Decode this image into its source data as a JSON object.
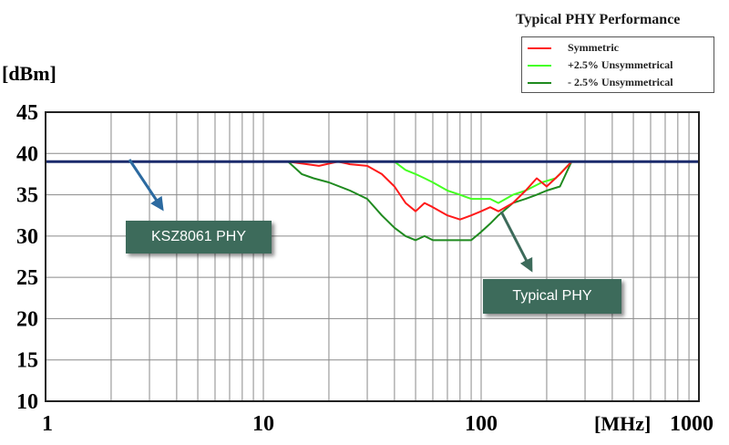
{
  "legend": {
    "title": "Typical PHY Performance",
    "items": [
      {
        "label": "Symmetric",
        "color": "#ff1a1a"
      },
      {
        "label": "+2.5% Unsymmetrical",
        "color": "#44ff22"
      },
      {
        "label": "- 2.5% Unsymmetrical",
        "color": "#1f8a1f"
      }
    ]
  },
  "callouts": {
    "ksz": "KSZ8061 PHY",
    "typical": "Typical PHY"
  },
  "chart_data": {
    "type": "line",
    "title": "Typical PHY Performance",
    "xlabel": "[MHz]",
    "ylabel": "[dBm]",
    "x_scale": "log",
    "xlim": [
      1,
      1000
    ],
    "ylim": [
      10,
      45
    ],
    "x_ticks": [
      "1",
      "10",
      "100",
      "1000"
    ],
    "y_ticks": [
      "10",
      "15",
      "20",
      "25",
      "30",
      "35",
      "40",
      "45"
    ],
    "grid": true,
    "legend_position": "top-right",
    "series": [
      {
        "name": "KSZ8061 PHY",
        "color": "#1a2a6b",
        "points": [
          [
            1,
            39
          ],
          [
            10,
            39
          ],
          [
            100,
            39
          ],
          [
            1000,
            39
          ]
        ]
      },
      {
        "name": "Symmetric",
        "color": "#ff1a1a",
        "points": [
          [
            1,
            39
          ],
          [
            13,
            39
          ],
          [
            18,
            38.5
          ],
          [
            22,
            39
          ],
          [
            25,
            38.7
          ],
          [
            30,
            38.5
          ],
          [
            35,
            37.5
          ],
          [
            40,
            36
          ],
          [
            45,
            34
          ],
          [
            50,
            33
          ],
          [
            55,
            34
          ],
          [
            60,
            33.5
          ],
          [
            70,
            32.5
          ],
          [
            80,
            32
          ],
          [
            90,
            32.5
          ],
          [
            100,
            33
          ],
          [
            110,
            33.5
          ],
          [
            120,
            33
          ],
          [
            140,
            34
          ],
          [
            160,
            35.5
          ],
          [
            180,
            37
          ],
          [
            200,
            36
          ],
          [
            230,
            37.5
          ],
          [
            260,
            39
          ],
          [
            1000,
            39
          ]
        ]
      },
      {
        "name": "+2.5% Unsymmetrical",
        "color": "#44ff22",
        "points": [
          [
            1,
            39
          ],
          [
            40,
            39
          ],
          [
            45,
            38
          ],
          [
            50,
            37.5
          ],
          [
            55,
            37
          ],
          [
            60,
            36.5
          ],
          [
            70,
            35.5
          ],
          [
            80,
            35
          ],
          [
            90,
            34.5
          ],
          [
            100,
            34.5
          ],
          [
            110,
            34.5
          ],
          [
            120,
            34
          ],
          [
            140,
            35
          ],
          [
            160,
            35.5
          ],
          [
            190,
            36.5
          ],
          [
            220,
            37
          ],
          [
            260,
            39
          ],
          [
            1000,
            39
          ]
        ]
      },
      {
        "name": "- 2.5% Unsymmetrical",
        "color": "#1f8a1f",
        "points": [
          [
            1,
            39
          ],
          [
            13,
            39
          ],
          [
            15,
            37.5
          ],
          [
            17,
            37
          ],
          [
            20,
            36.5
          ],
          [
            25,
            35.5
          ],
          [
            30,
            34.5
          ],
          [
            35,
            32.5
          ],
          [
            40,
            31
          ],
          [
            45,
            30
          ],
          [
            50,
            29.5
          ],
          [
            55,
            30
          ],
          [
            60,
            29.5
          ],
          [
            70,
            29.5
          ],
          [
            80,
            29.5
          ],
          [
            90,
            29.5
          ],
          [
            100,
            30.5
          ],
          [
            110,
            31.5
          ],
          [
            120,
            32.5
          ],
          [
            140,
            34
          ],
          [
            160,
            34.5
          ],
          [
            180,
            35
          ],
          [
            200,
            35.5
          ],
          [
            230,
            36
          ],
          [
            260,
            39
          ],
          [
            1000,
            39
          ]
        ]
      }
    ]
  }
}
